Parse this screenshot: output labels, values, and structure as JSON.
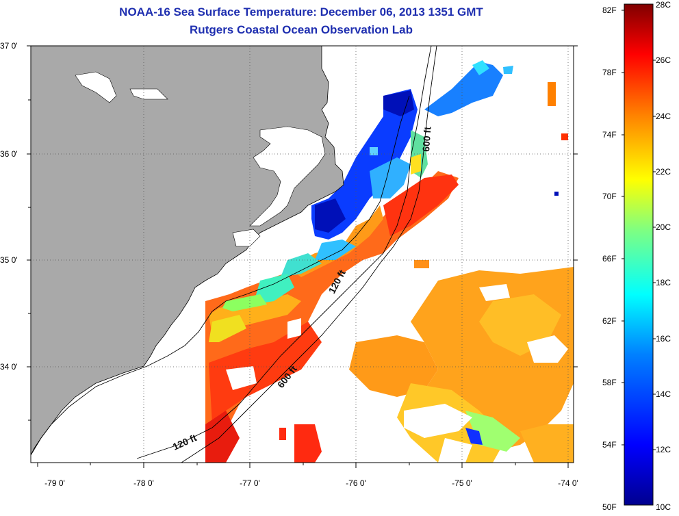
{
  "title_line1": "NOAA-16 Sea Surface Temperature:  December 06, 2013 1351 GMT",
  "title_line2": "Rutgers Coastal Ocean Observation Lab",
  "lat_labels": [
    "37 0'",
    "36 0'",
    "35 0'",
    "34 0'"
  ],
  "lon_labels": [
    "-79 0'",
    "-78 0'",
    "-77 0'",
    "-76 0'",
    "-75 0'",
    "-74 0'"
  ],
  "contours": {
    "c120_north": "120 ft",
    "c120_south": "120 ft",
    "c600_north": "600 ft",
    "c600_south": "600 ft"
  },
  "colorbar": {
    "fahrenheit": [
      "82F",
      "78F",
      "74F",
      "70F",
      "66F",
      "62F",
      "58F",
      "54F",
      "50F"
    ],
    "celsius": [
      "28C",
      "26C",
      "24C",
      "22C",
      "20C",
      "18C",
      "16C",
      "14C",
      "12C",
      "10C"
    ],
    "colors": [
      "#00008f",
      "#0000ff",
      "#0080ff",
      "#00ffff",
      "#80ff80",
      "#ffff00",
      "#ff8000",
      "#ff0000",
      "#800000"
    ]
  },
  "colors": {
    "land": "#a9a9a9",
    "title": "#1f2fb0"
  }
}
